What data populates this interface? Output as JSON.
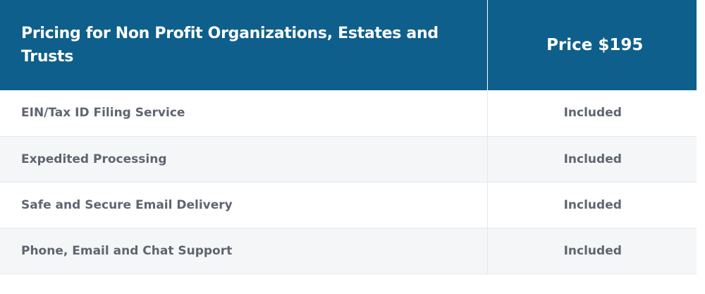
{
  "table": {
    "header": {
      "title": "Pricing for Non Profit Organizations, Estates and Trusts",
      "price": "Price $195"
    },
    "rows": [
      {
        "feature": "EIN/Tax ID Filing Service",
        "value": "Included"
      },
      {
        "feature": "Expedited Processing",
        "value": "Included"
      },
      {
        "feature": "Safe and Secure Email Delivery",
        "value": "Included"
      },
      {
        "feature": "Phone, Email and Chat Support",
        "value": "Included"
      }
    ]
  },
  "colors": {
    "header_background": "#0e5f8c",
    "header_text": "#ffffff",
    "body_text": "#5f6570",
    "alt_row_background": "#f5f6f8",
    "border": "#e6e8ec"
  }
}
